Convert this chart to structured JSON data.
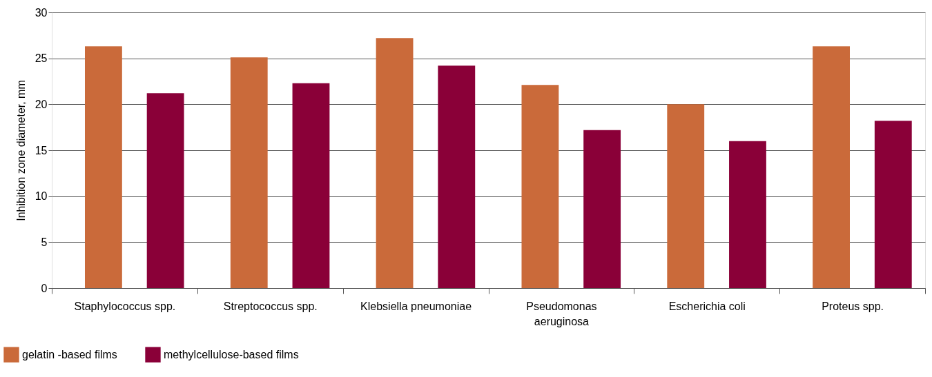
{
  "chart_data": {
    "type": "bar",
    "ylabel": "Inhibition zone diameter, mm",
    "categories": [
      "Staphylococcus spp.",
      "Streptococcus spp.",
      "Klebsiella pneumoniae",
      "Pseudomonas aeruginosa",
      "Escherichia coli",
      "Proteus spp."
    ],
    "series": [
      {
        "name": "gelatin -based films",
        "color": "#ca6a3a",
        "values": [
          26.3,
          25.1,
          27.2,
          22.1,
          20.0,
          26.3
        ]
      },
      {
        "name": "methylcellulose-based films",
        "color": "#8a0038",
        "values": [
          21.2,
          22.3,
          24.2,
          17.2,
          16.0,
          18.2
        ]
      }
    ],
    "ylim": [
      0,
      30
    ],
    "yticks": [
      0,
      5,
      10,
      15,
      20,
      25,
      30
    ],
    "grid": "y",
    "legend": "bottom left"
  }
}
